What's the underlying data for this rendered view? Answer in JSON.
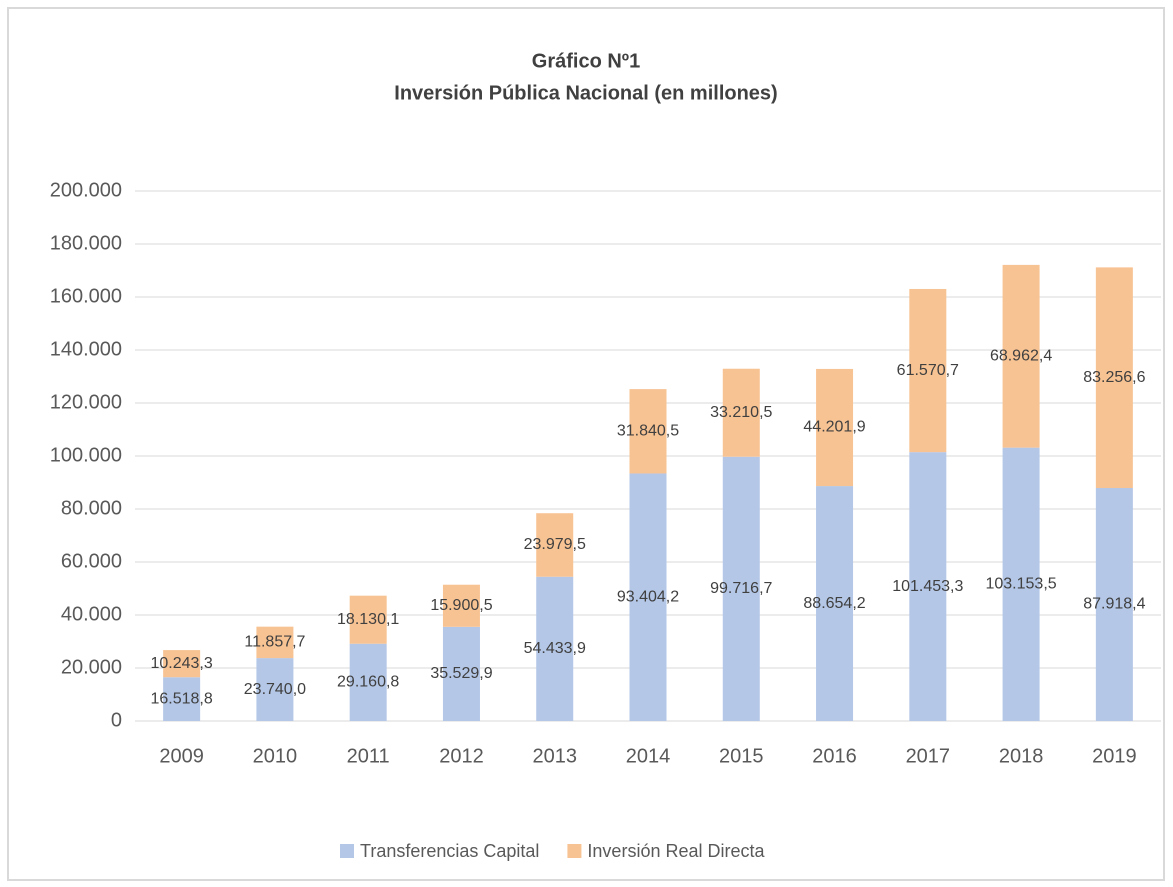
{
  "chart_data": {
    "type": "stacked_bar",
    "title": "Gráfico Nº1",
    "subtitle": "Inversión Pública Nacional (en millones)",
    "categories": [
      "2009",
      "2010",
      "2011",
      "2012",
      "2013",
      "2014",
      "2015",
      "2016",
      "2017",
      "2018",
      "2019"
    ],
    "series": [
      {
        "name": "Transferencias Capital",
        "color": "#b4c7e7",
        "values": [
          16518.8,
          23740.0,
          29160.8,
          35529.9,
          54433.9,
          93404.2,
          99716.7,
          88654.2,
          101453.3,
          103153.5,
          87918.4
        ],
        "value_labels": [
          "16.518,8",
          "23.740,0",
          "29.160,8",
          "35.529,9",
          "54.433,9",
          "93.404,2",
          "99.716,7",
          "88.654,2",
          "101.453,3",
          "103.153,5",
          "87.918,4"
        ]
      },
      {
        "name": "Inversión Real Directa",
        "color": "#f8c393",
        "values": [
          10243.3,
          11857.7,
          18130.1,
          15900.5,
          23979.5,
          31840.5,
          33210.5,
          44201.9,
          61570.7,
          68962.4,
          83256.6
        ],
        "value_labels": [
          "10.243,3",
          "11.857,7",
          "18.130,1",
          "15.900,5",
          "23.979,5",
          "31.840,5",
          "33.210,5",
          "44.201,9",
          "61.570,7",
          "68.962,4",
          "83.256,6"
        ]
      }
    ],
    "ylim": [
      0,
      200000
    ],
    "yticks": [
      0,
      {
        "value": 20000,
        "label": "20.000"
      },
      {
        "value": 40000,
        "label": "40.000"
      },
      {
        "value": 60000,
        "label": "60.000"
      },
      {
        "value": 80000,
        "label": "80.000"
      },
      {
        "value": 100000,
        "label": "100.000"
      },
      {
        "value": 120000,
        "label": "120.000"
      },
      {
        "value": 140000,
        "label": "140.000"
      },
      {
        "value": 160000,
        "label": "160.000"
      },
      {
        "value": 180000,
        "label": "180.000"
      },
      {
        "value": 200000,
        "label": "200.000"
      }
    ],
    "grid": true,
    "legend": "bottom"
  }
}
